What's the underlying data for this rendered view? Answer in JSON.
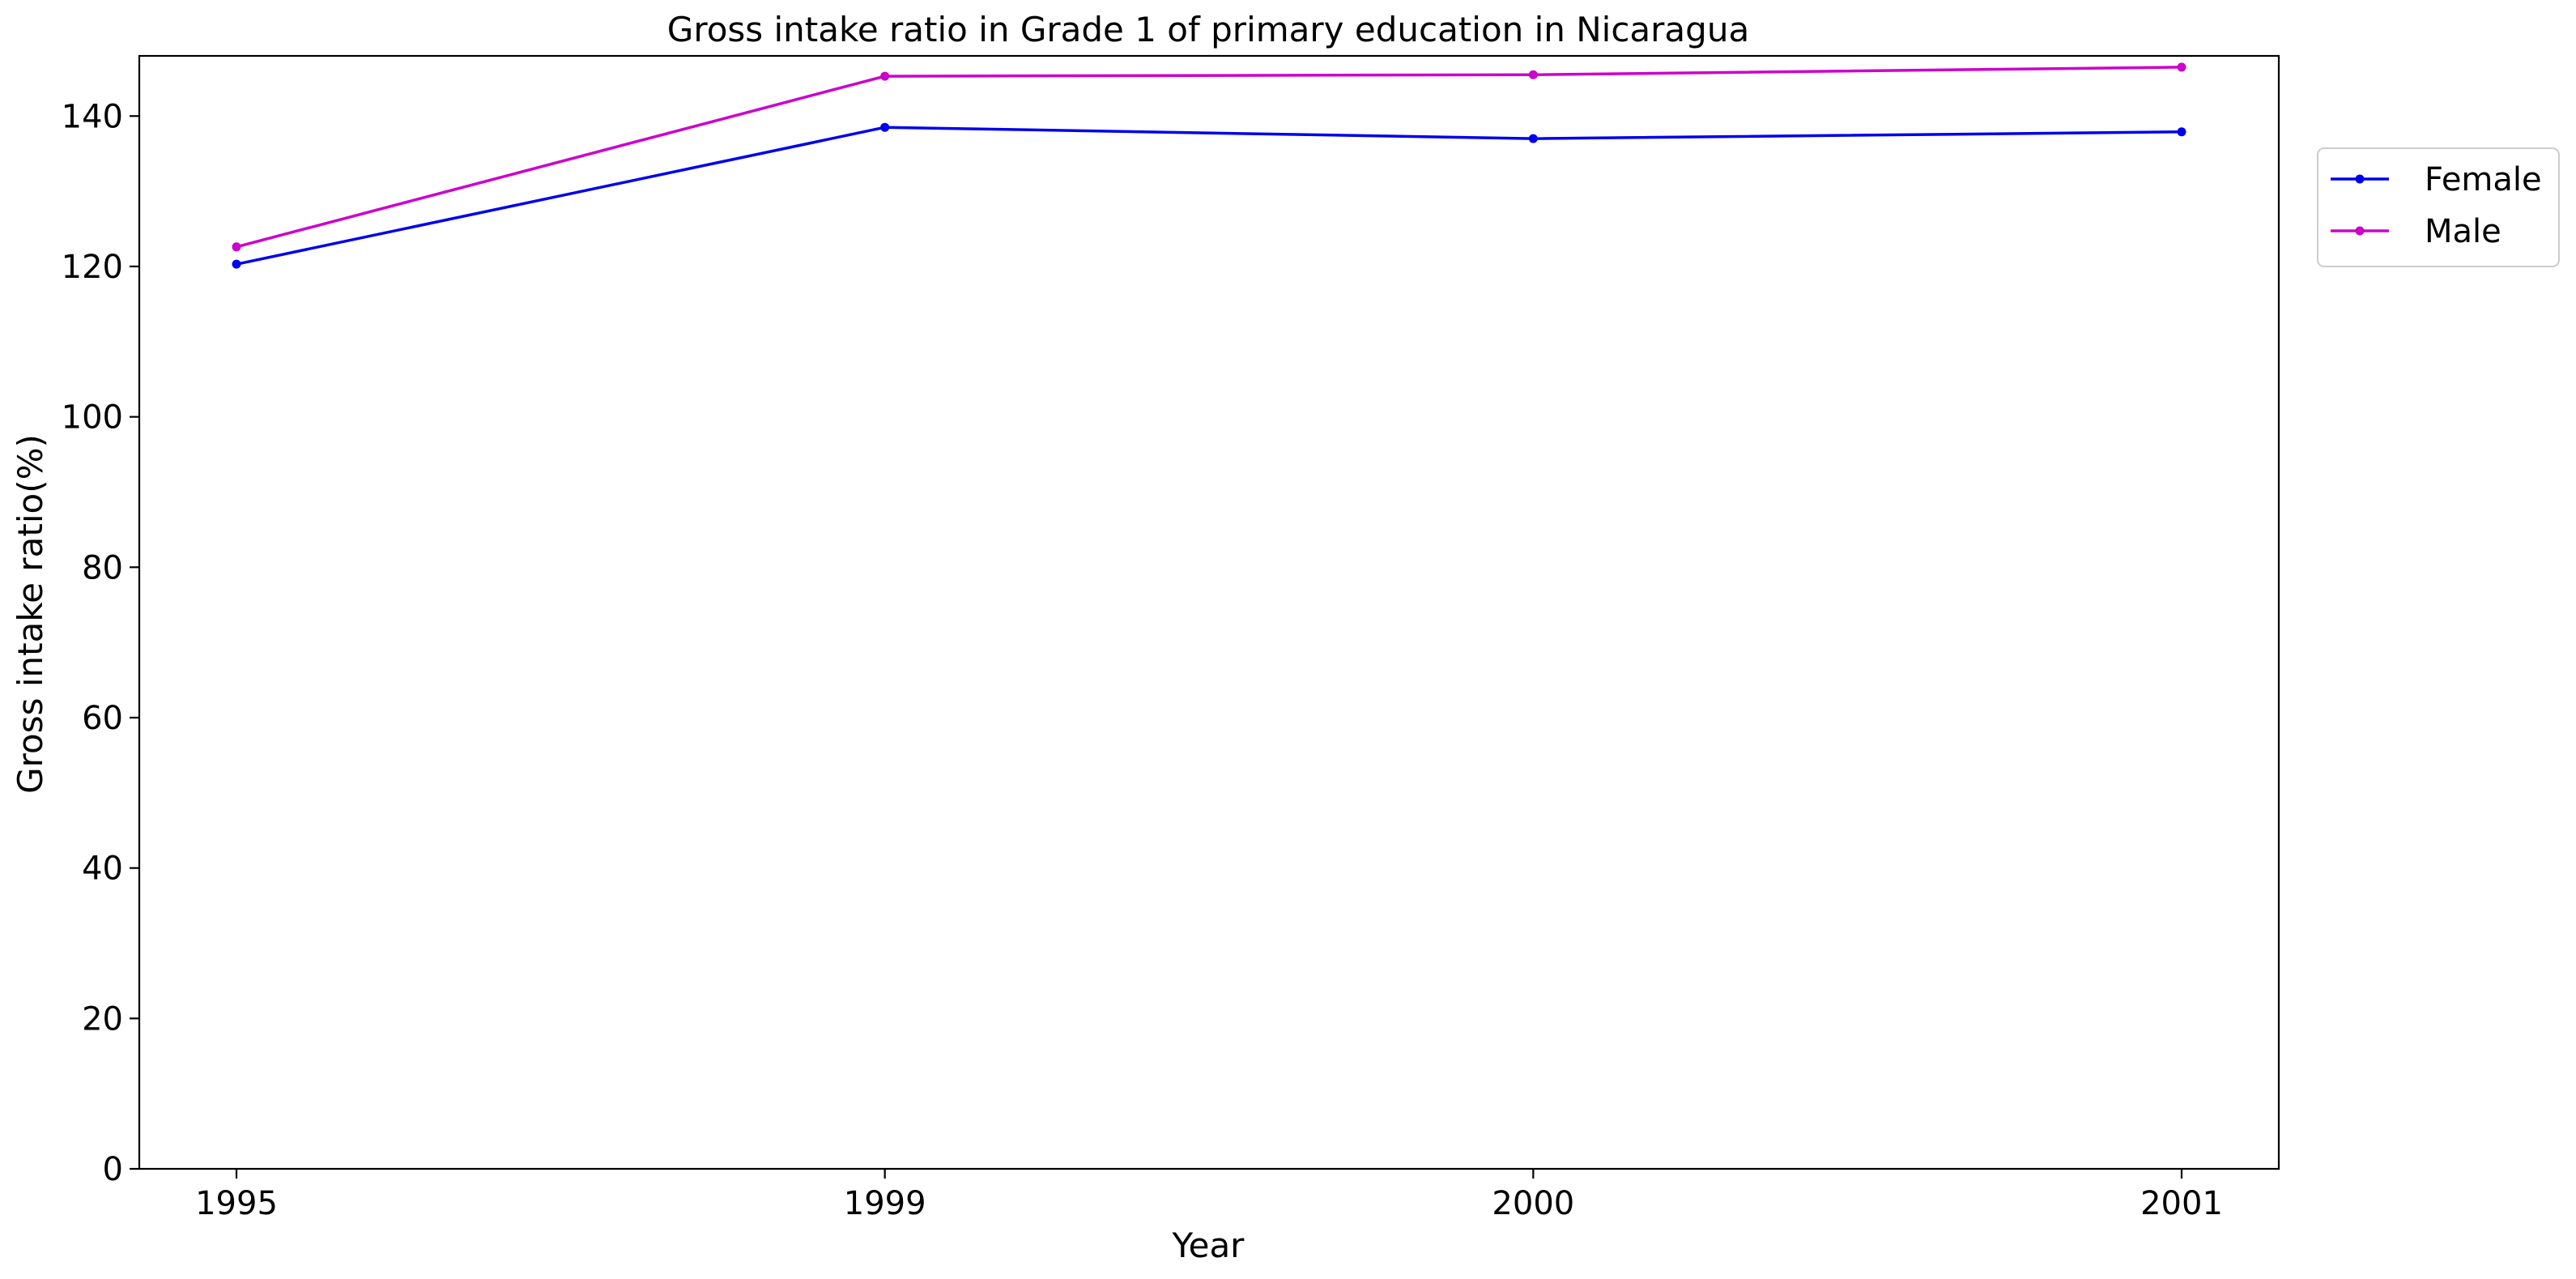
{
  "chart_data": {
    "type": "line",
    "title": "Gross intake ratio in Grade 1 of primary education in Nicaragua",
    "xlabel": "Year",
    "ylabel": "Gross intake ratio(%)",
    "categories": [
      "1995",
      "1999",
      "2000",
      "2001"
    ],
    "ylim": [
      0,
      148
    ],
    "yticks": [
      0,
      20,
      40,
      60,
      80,
      100,
      120,
      140
    ],
    "grid": false,
    "legend_position": "outside-top-right",
    "series": [
      {
        "name": "Female",
        "color": "#0000ee",
        "values": [
          120.3,
          138.5,
          137.0,
          137.9
        ]
      },
      {
        "name": "Male",
        "color": "#cc00cc",
        "values": [
          122.6,
          145.3,
          145.5,
          146.5
        ]
      }
    ]
  }
}
